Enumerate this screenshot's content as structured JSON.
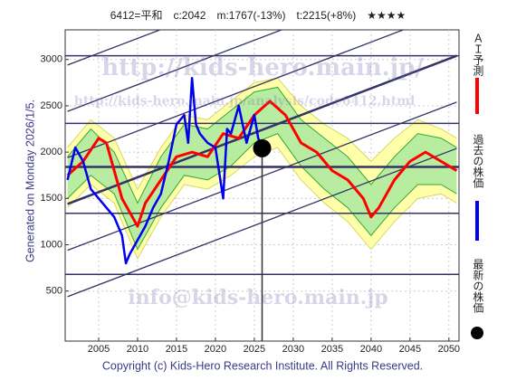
{
  "chart_data": {
    "type": "line",
    "title": "6412=平和　c:2042　m:1767(-13%)　t:2215(+8%)　★★★★",
    "footer": "Copyright (c) Kids-Hero Research Institute. All Rights Reserved.",
    "side_note": "Generated on Monday 2026/1/5.",
    "watermarks": [
      "http://kids-hero.main.jp/",
      "http://kids-hero.main.jp/analysis/code6412.html",
      "info@kids-hero.main.jp"
    ],
    "xlim": [
      2000.7,
      2051.3
    ],
    "ylim": [
      -40,
      3320
    ],
    "xticks": [
      2005,
      2010,
      2015,
      2020,
      2025,
      2030,
      2035,
      2040,
      2045,
      2050
    ],
    "yticks": [
      500,
      1000,
      1500,
      2000,
      2500,
      3000
    ],
    "grid": true,
    "bands": [
      {
        "fill": "#ffffaa",
        "stroke": "#d8d860",
        "x": [
          2001,
          2004,
          2007,
          2010,
          2013,
          2016,
          2019,
          2022,
          2025,
          2028,
          2031,
          2034,
          2037,
          2040,
          2043,
          2046,
          2049,
          2051
        ],
        "upper": [
          2050,
          2350,
          2150,
          1600,
          2050,
          2400,
          2350,
          2550,
          2750,
          2800,
          2500,
          2300,
          2150,
          1900,
          2150,
          2350,
          2250,
          2150
        ],
        "lower": [
          1400,
          1650,
          1450,
          850,
          1300,
          1650,
          1600,
          1750,
          1950,
          2050,
          1700,
          1450,
          1250,
          950,
          1250,
          1500,
          1550,
          1450
        ]
      },
      {
        "fill": "#b8eca0",
        "stroke": "#33aa33",
        "x": [
          2001,
          2004,
          2007,
          2010,
          2013,
          2016,
          2019,
          2022,
          2025,
          2028,
          2031,
          2034,
          2037,
          2040,
          2043,
          2046,
          2049,
          2051
        ],
        "upper": [
          1950,
          2250,
          2000,
          1450,
          1950,
          2300,
          2250,
          2450,
          2650,
          2700,
          2350,
          2150,
          1950,
          1650,
          1950,
          2200,
          2150,
          2050
        ],
        "lower": [
          1500,
          1750,
          1550,
          950,
          1400,
          1750,
          1700,
          1850,
          2100,
          2200,
          1850,
          1600,
          1400,
          1100,
          1400,
          1650,
          1650,
          1550
        ]
      }
    ],
    "trend_lines": [
      {
        "x": [
          2001,
          2051
        ],
        "y": [
          440,
          2040
        ]
      },
      {
        "x": [
          2001,
          2051
        ],
        "y": [
          940,
          2540
        ]
      },
      {
        "x": [
          2001,
          2051
        ],
        "y": [
          1440,
          3040
        ]
      },
      {
        "x": [
          2001,
          2051
        ],
        "y": [
          1940,
          3540
        ]
      },
      {
        "x": [
          2001,
          2051
        ],
        "y": [
          2440,
          4040
        ]
      },
      {
        "x": [
          2001,
          2051
        ],
        "y": [
          2940,
          4540
        ]
      }
    ],
    "levels": [
      3040,
      2310,
      1840,
      1340,
      680
    ],
    "series": [
      {
        "name": "ＡＩ予測",
        "color": "#ff0000",
        "x": [
          2001,
          2003,
          2005,
          2006,
          2008,
          2010,
          2011,
          2013,
          2015,
          2017,
          2019,
          2021,
          2023,
          2025,
          2027,
          2029,
          2031,
          2033,
          2035,
          2037,
          2039,
          2040,
          2041,
          2043,
          2045,
          2047,
          2049,
          2051
        ],
        "values": [
          1750,
          1900,
          2150,
          2100,
          1500,
          1200,
          1450,
          1700,
          1950,
          2000,
          1950,
          2200,
          2150,
          2400,
          2550,
          2400,
          2100,
          2000,
          1800,
          1700,
          1500,
          1300,
          1400,
          1700,
          1900,
          2000,
          1900,
          1800
        ]
      },
      {
        "name": "過去の株価",
        "color": "#0000ee",
        "x": [
          2001,
          2002,
          2003,
          2004,
          2005,
          2006,
          2007,
          2008,
          2008.5,
          2009,
          2010,
          2011,
          2012,
          2013,
          2014,
          2015,
          2016,
          2016.5,
          2017,
          2017.5,
          2018,
          2019,
          2020,
          2021,
          2021.5,
          2022,
          2023,
          2024,
          2025,
          2025.5,
          2026
        ],
        "values": [
          1700,
          2050,
          1900,
          1600,
          1500,
          1400,
          1300,
          1100,
          800,
          900,
          1050,
          1200,
          1400,
          1550,
          1900,
          2300,
          2400,
          2100,
          2800,
          2300,
          2200,
          2100,
          2050,
          1500,
          2250,
          2200,
          2500,
          2100,
          2400,
          2150,
          2042
        ]
      },
      {
        "name": "最新の株価",
        "color": "#000000",
        "x": [
          2026
        ],
        "values": [
          2042
        ]
      }
    ]
  }
}
